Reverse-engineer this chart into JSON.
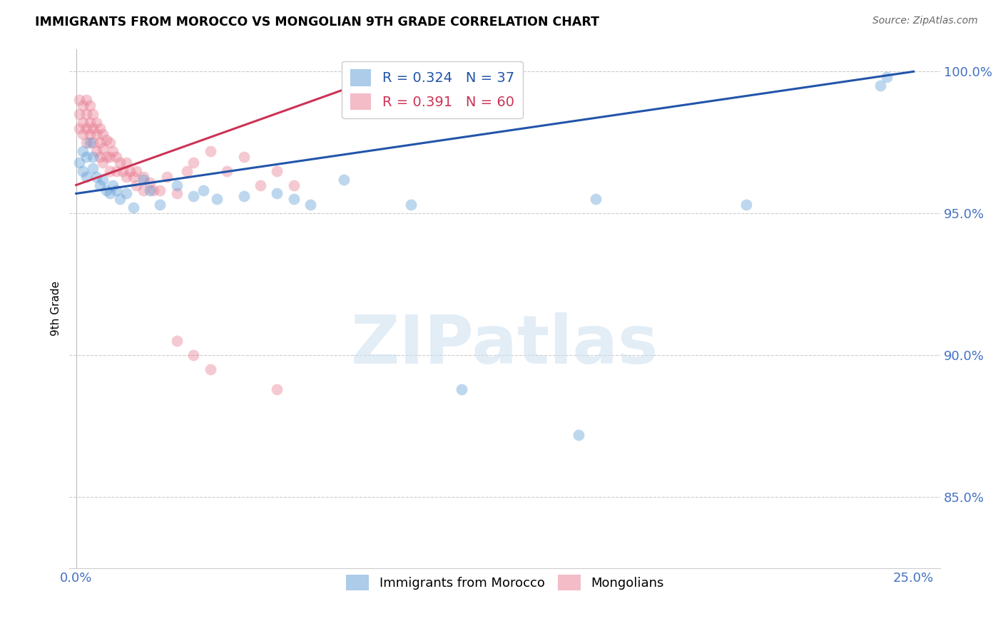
{
  "title": "IMMIGRANTS FROM MOROCCO VS MONGOLIAN 9TH GRADE CORRELATION CHART",
  "source": "Source: ZipAtlas.com",
  "ylabel": "9th Grade",
  "ytick_labels": [
    "85.0%",
    "90.0%",
    "95.0%",
    "100.0%"
  ],
  "ylim": [
    0.825,
    1.008
  ],
  "xlim": [
    -0.002,
    0.258
  ],
  "ytick_positions": [
    0.85,
    0.9,
    0.95,
    1.0
  ],
  "xtick_positions": [
    0.0,
    0.0625,
    0.125,
    0.1875,
    0.25
  ],
  "xtick_labels": [
    "0.0%",
    "",
    "",
    "",
    "25.0%"
  ],
  "watermark_text": "ZIPatlas",
  "blue_label": "R = 0.324",
  "blue_n": "N = 37",
  "pink_label": "R = 0.391",
  "pink_n": "N = 60",
  "blue_scatter_x": [
    0.001,
    0.002,
    0.002,
    0.003,
    0.003,
    0.004,
    0.005,
    0.005,
    0.006,
    0.007,
    0.008,
    0.009,
    0.01,
    0.011,
    0.012,
    0.013,
    0.015,
    0.017,
    0.02,
    0.022,
    0.025,
    0.03,
    0.035,
    0.038,
    0.042,
    0.05,
    0.06,
    0.065,
    0.07,
    0.08,
    0.1,
    0.115,
    0.15,
    0.155,
    0.2,
    0.24,
    0.242
  ],
  "blue_scatter_y": [
    0.968,
    0.972,
    0.965,
    0.97,
    0.963,
    0.975,
    0.97,
    0.966,
    0.963,
    0.96,
    0.962,
    0.958,
    0.957,
    0.96,
    0.958,
    0.955,
    0.957,
    0.952,
    0.962,
    0.958,
    0.953,
    0.96,
    0.956,
    0.958,
    0.955,
    0.956,
    0.957,
    0.955,
    0.953,
    0.962,
    0.953,
    0.888,
    0.872,
    0.955,
    0.953,
    0.995,
    0.998
  ],
  "pink_scatter_x": [
    0.001,
    0.001,
    0.001,
    0.002,
    0.002,
    0.002,
    0.003,
    0.003,
    0.003,
    0.003,
    0.004,
    0.004,
    0.004,
    0.005,
    0.005,
    0.005,
    0.006,
    0.006,
    0.006,
    0.007,
    0.007,
    0.007,
    0.008,
    0.008,
    0.008,
    0.009,
    0.009,
    0.01,
    0.01,
    0.01,
    0.011,
    0.012,
    0.012,
    0.013,
    0.014,
    0.015,
    0.015,
    0.016,
    0.017,
    0.018,
    0.018,
    0.02,
    0.02,
    0.022,
    0.023,
    0.025,
    0.027,
    0.03,
    0.033,
    0.035,
    0.04,
    0.045,
    0.05,
    0.055,
    0.06,
    0.065,
    0.03,
    0.035,
    0.04,
    0.06
  ],
  "pink_scatter_y": [
    0.99,
    0.985,
    0.98,
    0.988,
    0.982,
    0.978,
    0.99,
    0.985,
    0.98,
    0.975,
    0.988,
    0.982,
    0.978,
    0.985,
    0.98,
    0.975,
    0.982,
    0.978,
    0.972,
    0.98,
    0.975,
    0.97,
    0.978,
    0.973,
    0.968,
    0.976,
    0.97,
    0.975,
    0.97,
    0.965,
    0.972,
    0.97,
    0.965,
    0.968,
    0.965,
    0.968,
    0.963,
    0.965,
    0.963,
    0.965,
    0.96,
    0.963,
    0.958,
    0.961,
    0.958,
    0.958,
    0.963,
    0.957,
    0.965,
    0.968,
    0.972,
    0.965,
    0.97,
    0.96,
    0.965,
    0.96,
    0.905,
    0.9,
    0.895,
    0.888
  ],
  "blue_line_x": [
    0.0,
    0.25
  ],
  "blue_line_y": [
    0.957,
    1.0
  ],
  "pink_line_x": [
    0.0,
    0.095
  ],
  "pink_line_y": [
    0.96,
    1.0
  ],
  "blue_color": "#5b9bd5",
  "pink_color": "#e87a90",
  "blue_line_color": "#2255aa",
  "pink_line_color": "#cc3355",
  "legend_blue_label": "R = 0.324   N = 37",
  "legend_pink_label": "R = 0.391   N = 60",
  "bottom_legend_blue": "Immigrants from Morocco",
  "bottom_legend_pink": "Mongolians"
}
